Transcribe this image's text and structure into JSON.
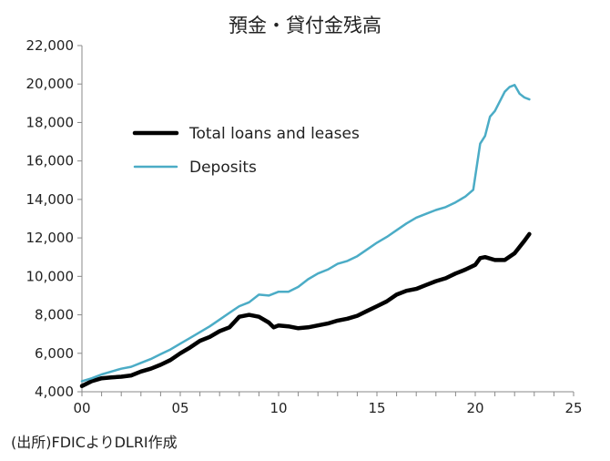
{
  "chart_data": {
    "type": "line",
    "title": "預金・貸付金残高",
    "xlabel": "",
    "ylabel": "",
    "xlim": [
      2000,
      2025
    ],
    "ylim": [
      4000,
      22000
    ],
    "x_ticks": [
      2000,
      2005,
      2010,
      2015,
      2020,
      2025
    ],
    "x_tick_labels": [
      "00",
      "05",
      "10",
      "15",
      "20",
      "25"
    ],
    "y_ticks": [
      4000,
      6000,
      8000,
      10000,
      12000,
      14000,
      16000,
      18000,
      20000,
      22000
    ],
    "y_tick_labels": [
      "4,000",
      "6,000",
      "8,000",
      "10,000",
      "12,000",
      "14,000",
      "16,000",
      "18,000",
      "20,000",
      "22,000"
    ],
    "grid": false,
    "legend_position": "upper-left",
    "series": [
      {
        "name": "Total loans and leases",
        "color": "#000000",
        "x": [
          2000.0,
          2000.5,
          2001.0,
          2001.5,
          2002.0,
          2002.5,
          2003.0,
          2003.5,
          2004.0,
          2004.5,
          2005.0,
          2005.5,
          2006.0,
          2006.5,
          2007.0,
          2007.5,
          2008.0,
          2008.5,
          2009.0,
          2009.5,
          2009.75,
          2010.0,
          2010.5,
          2011.0,
          2011.5,
          2012.0,
          2012.5,
          2013.0,
          2013.5,
          2014.0,
          2014.5,
          2015.0,
          2015.5,
          2016.0,
          2016.5,
          2017.0,
          2017.5,
          2018.0,
          2018.5,
          2019.0,
          2019.5,
          2020.0,
          2020.25,
          2020.5,
          2021.0,
          2021.5,
          2022.0,
          2022.5,
          2022.75
        ],
        "values": [
          4300,
          4550,
          4700,
          4750,
          4780,
          4850,
          5050,
          5200,
          5400,
          5650,
          6000,
          6300,
          6650,
          6850,
          7150,
          7350,
          7900,
          8000,
          7900,
          7600,
          7350,
          7450,
          7400,
          7300,
          7350,
          7450,
          7550,
          7700,
          7800,
          7950,
          8200,
          8450,
          8700,
          9050,
          9250,
          9350,
          9550,
          9750,
          9900,
          10150,
          10350,
          10600,
          10950,
          11000,
          10850,
          10850,
          11200,
          11850,
          12200
        ]
      },
      {
        "name": "Deposits",
        "color": "#4bacc6",
        "x": [
          2000.0,
          2000.5,
          2001.0,
          2001.5,
          2002.0,
          2002.5,
          2003.0,
          2003.5,
          2004.0,
          2004.5,
          2005.0,
          2005.5,
          2006.0,
          2006.5,
          2007.0,
          2007.5,
          2008.0,
          2008.5,
          2009.0,
          2009.5,
          2010.0,
          2010.5,
          2011.0,
          2011.5,
          2012.0,
          2012.5,
          2013.0,
          2013.5,
          2014.0,
          2014.5,
          2015.0,
          2015.5,
          2016.0,
          2016.5,
          2017.0,
          2017.5,
          2018.0,
          2018.5,
          2019.0,
          2019.5,
          2019.9,
          2020.25,
          2020.5,
          2020.75,
          2021.0,
          2021.5,
          2021.75,
          2022.0,
          2022.25,
          2022.5,
          2022.75
        ],
        "values": [
          4550,
          4700,
          4900,
          5050,
          5200,
          5300,
          5500,
          5700,
          5950,
          6200,
          6500,
          6800,
          7100,
          7400,
          7750,
          8100,
          8450,
          8650,
          9050,
          9000,
          9200,
          9200,
          9450,
          9850,
          10150,
          10350,
          10650,
          10800,
          11050,
          11400,
          11750,
          12050,
          12400,
          12750,
          13050,
          13250,
          13450,
          13600,
          13850,
          14150,
          14500,
          16900,
          17300,
          18300,
          18600,
          19600,
          19850,
          19950,
          19500,
          19300,
          19200
        ]
      }
    ],
    "annotation": "(出所)FDICよりDLRI作成"
  }
}
